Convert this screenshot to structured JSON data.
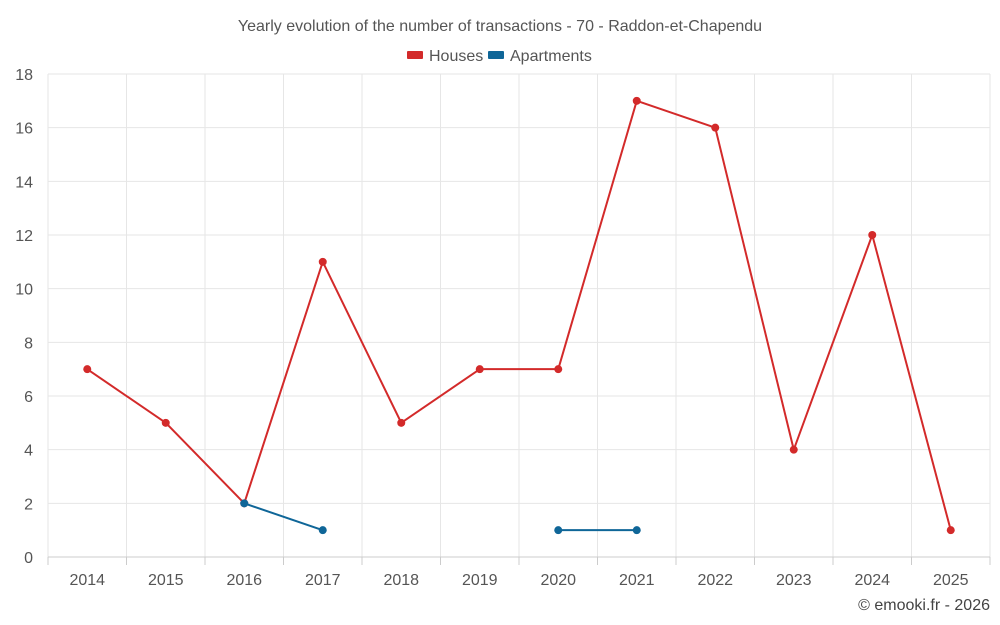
{
  "chart_data": {
    "type": "line",
    "title": "Yearly evolution of the number of transactions - 70 - Raddon-et-Chapendu",
    "categories": [
      "2014",
      "2015",
      "2016",
      "2017",
      "2018",
      "2019",
      "2020",
      "2021",
      "2022",
      "2023",
      "2024",
      "2025"
    ],
    "series": [
      {
        "name": "Houses",
        "color": "#d32a2a",
        "values": [
          7,
          5,
          2,
          11,
          5,
          7,
          7,
          17,
          16,
          4,
          12,
          1
        ]
      },
      {
        "name": "Apartments",
        "color": "#0f6698",
        "values": [
          null,
          null,
          2,
          1,
          null,
          null,
          1,
          1,
          null,
          null,
          null,
          null
        ]
      }
    ],
    "ylim": [
      0,
      18
    ],
    "yticks": [
      0,
      2,
      4,
      6,
      8,
      10,
      12,
      14,
      16,
      18
    ],
    "xlabel": "",
    "ylabel": "",
    "grid": true,
    "legend_position": "top-center"
  },
  "credit": "© emooki.fr - 2026"
}
